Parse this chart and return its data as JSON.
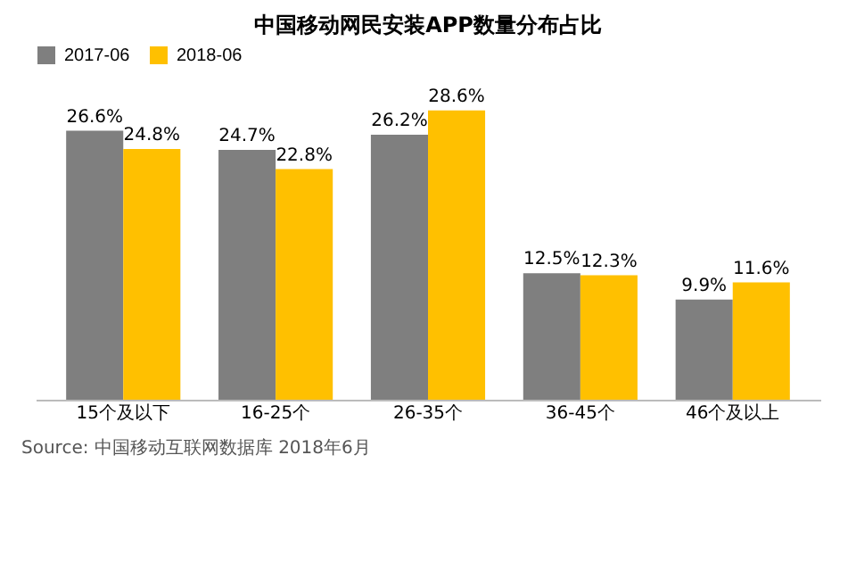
{
  "chart_data": {
    "type": "bar",
    "title": "中国移动网民安装APP数量分布占比",
    "categories": [
      "15个及以下",
      "16-25个",
      "26-35个",
      "36-45个",
      "46个及以上"
    ],
    "series": [
      {
        "name": "2017-06",
        "color": "#7f7f7f",
        "values": [
          26.6,
          24.7,
          26.2,
          12.5,
          9.9
        ],
        "value_labels": [
          "26.6%",
          "24.7%",
          "26.2%",
          "12.5%",
          "9.9%"
        ]
      },
      {
        "name": "2018-06",
        "color": "#ffc000",
        "values": [
          24.8,
          22.8,
          28.6,
          12.3,
          11.6
        ],
        "value_labels": [
          "24.8%",
          "22.8%",
          "28.6%",
          "12.3%",
          "11.6%"
        ]
      }
    ],
    "legend": "top",
    "annotations": [
      "Source: 中国移动互联网数据库 2018年6月"
    ]
  }
}
